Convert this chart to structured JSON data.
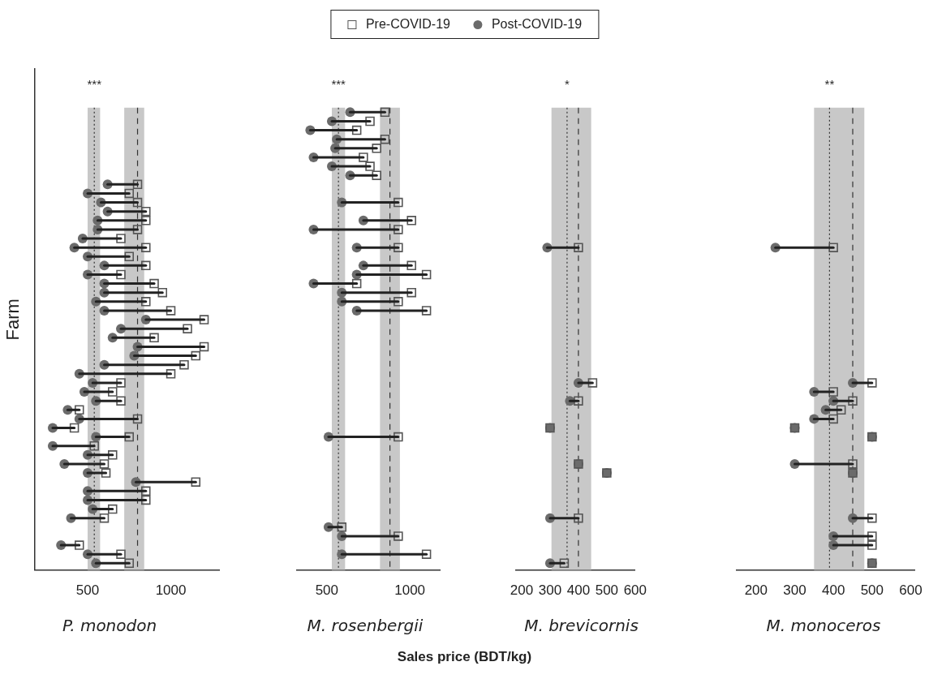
{
  "chart_data": [
    {
      "type": "scatter",
      "orientation": "horizontal",
      "title": "P. monodon",
      "ylabel": "Farm",
      "legend": "top",
      "annotations": [
        "***"
      ],
      "categories": [
        null,
        null,
        null,
        null,
        null,
        null,
        null,
        null,
        null,
        null,
        null,
        null,
        null,
        null,
        null,
        null,
        null,
        null,
        null,
        null,
        null,
        null,
        null,
        null,
        null,
        null,
        null,
        null,
        null,
        null,
        null,
        null,
        null,
        null,
        null,
        null,
        null,
        null,
        null,
        null,
        null,
        null,
        null,
        null,
        null,
        null,
        null,
        null,
        null,
        null,
        null
      ],
      "xlim": [
        180,
        1290
      ],
      "xticks": [
        500,
        1000
      ],
      "bands": [
        {
          "axis": "x",
          "from": 500,
          "to": 575,
          "color": "#c8c8c8"
        },
        {
          "axis": "x",
          "from": 720,
          "to": 840,
          "color": "#c8c8c8"
        }
      ],
      "ref_lines": [
        {
          "axis": "x",
          "value": 540,
          "line_style": "dotted",
          "color": "#333333"
        },
        {
          "axis": "x",
          "value": 800,
          "line_style": "dashed",
          "color": "#333333"
        }
      ],
      "series": [
        {
          "name": "Pre-COVID-19",
          "color": "#555555",
          "marker": "square",
          "values": [
            null,
            null,
            null,
            null,
            null,
            null,
            null,
            null,
            800,
            750,
            800,
            850,
            850,
            800,
            700,
            850,
            750,
            850,
            700,
            900,
            950,
            850,
            1000,
            1200,
            1100,
            900,
            1200,
            1150,
            1080,
            1000,
            700,
            650,
            700,
            450,
            800,
            420,
            750,
            540,
            650,
            600,
            610,
            1150,
            850,
            850,
            650,
            600,
            null,
            null,
            450,
            700,
            750
          ]
        },
        {
          "name": "Post-COVID-19",
          "color": "#6b6b6b",
          "marker": "circle",
          "values": [
            null,
            null,
            null,
            null,
            null,
            null,
            null,
            null,
            620,
            500,
            580,
            620,
            560,
            560,
            470,
            420,
            500,
            600,
            500,
            600,
            600,
            550,
            600,
            850,
            700,
            650,
            800,
            780,
            600,
            450,
            530,
            480,
            550,
            380,
            450,
            290,
            550,
            290,
            500,
            360,
            500,
            790,
            500,
            500,
            530,
            400,
            null,
            null,
            340,
            500,
            550
          ]
        }
      ]
    },
    {
      "type": "scatter",
      "orientation": "horizontal",
      "title": "M. rosenbergii",
      "annotations": [
        "***"
      ],
      "categories": [
        null,
        null,
        null,
        null,
        null,
        null,
        null,
        null,
        null,
        null,
        null,
        null,
        null,
        null,
        null,
        null,
        null,
        null,
        null,
        null,
        null,
        null,
        null,
        null,
        null,
        null,
        null,
        null,
        null,
        null,
        null,
        null,
        null,
        null,
        null,
        null,
        null,
        null,
        null,
        null,
        null,
        null,
        null,
        null,
        null,
        null,
        null,
        null,
        null,
        null,
        null
      ],
      "xlim": [
        320,
        1180
      ],
      "xticks": [
        500,
        1000
      ],
      "bands": [
        {
          "axis": "x",
          "from": 530,
          "to": 610,
          "color": "#c8c8c8"
        },
        {
          "axis": "x",
          "from": 820,
          "to": 940,
          "color": "#c8c8c8"
        }
      ],
      "ref_lines": [
        {
          "axis": "x",
          "value": 570,
          "line_style": "dotted",
          "color": "#333333"
        },
        {
          "axis": "x",
          "value": 880,
          "line_style": "dashed",
          "color": "#333333"
        }
      ],
      "series": [
        {
          "color": "#555555",
          "marker": "square",
          "values": [
            850,
            760,
            680,
            850,
            800,
            720,
            760,
            800,
            null,
            null,
            930,
            null,
            1010,
            930,
            null,
            930,
            null,
            1010,
            1100,
            680,
            1010,
            930,
            1100,
            null,
            null,
            null,
            null,
            null,
            null,
            null,
            null,
            null,
            null,
            null,
            null,
            null,
            930,
            null,
            null,
            null,
            null,
            null,
            null,
            null,
            null,
            null,
            590,
            930,
            null,
            1100,
            null
          ]
        },
        {
          "color": "#6b6b6b",
          "marker": "circle",
          "values": [
            640,
            530,
            400,
            560,
            550,
            420,
            530,
            640,
            null,
            null,
            590,
            null,
            720,
            420,
            null,
            680,
            null,
            720,
            680,
            420,
            590,
            590,
            680,
            null,
            null,
            null,
            null,
            null,
            null,
            null,
            null,
            null,
            null,
            null,
            null,
            null,
            510,
            null,
            null,
            null,
            null,
            null,
            null,
            null,
            null,
            null,
            510,
            590,
            null,
            590,
            null
          ]
        }
      ]
    },
    {
      "type": "scatter",
      "orientation": "horizontal",
      "title": "M. brevicornis",
      "annotations": [
        "*"
      ],
      "categories": [
        null,
        null,
        null,
        null,
        null,
        null,
        null,
        null,
        null,
        null,
        null,
        null,
        null,
        null,
        null,
        null,
        null,
        null,
        null,
        null,
        null,
        null,
        null,
        null,
        null,
        null,
        null,
        null,
        null,
        null,
        null,
        null,
        null,
        null,
        null,
        null,
        null,
        null,
        null,
        null,
        null,
        null,
        null,
        null,
        null,
        null,
        null,
        null,
        null,
        null,
        null
      ],
      "xlim": [
        180,
        600
      ],
      "xticks": [
        200,
        300,
        400,
        500,
        600
      ],
      "bands": [
        {
          "axis": "x",
          "from": 305,
          "to": 445,
          "color": "#c8c8c8"
        }
      ],
      "ref_lines": [
        {
          "axis": "x",
          "value": 360,
          "line_style": "dotted",
          "color": "#333333"
        },
        {
          "axis": "x",
          "value": 400,
          "line_style": "dashed",
          "color": "#333333"
        }
      ],
      "series": [
        {
          "color": "#555555",
          "marker": "square",
          "values": [
            null,
            null,
            null,
            null,
            null,
            null,
            null,
            null,
            null,
            null,
            null,
            null,
            null,
            null,
            null,
            400,
            null,
            null,
            null,
            null,
            null,
            null,
            null,
            null,
            null,
            null,
            null,
            null,
            null,
            null,
            450,
            null,
            400,
            null,
            null,
            300,
            null,
            null,
            null,
            400,
            500,
            null,
            null,
            null,
            null,
            400,
            null,
            null,
            null,
            null,
            350
          ]
        },
        {
          "color": "#6b6b6b",
          "marker": "circle",
          "values": [
            null,
            null,
            null,
            null,
            null,
            null,
            null,
            null,
            null,
            null,
            null,
            null,
            null,
            null,
            null,
            290,
            null,
            null,
            null,
            null,
            null,
            null,
            null,
            null,
            null,
            null,
            null,
            null,
            null,
            null,
            400,
            null,
            370,
            null,
            null,
            300,
            null,
            null,
            null,
            400,
            500,
            null,
            null,
            null,
            null,
            300,
            null,
            null,
            null,
            null,
            300
          ]
        }
      ]
    },
    {
      "type": "scatter",
      "orientation": "horizontal",
      "title": "M. monoceros",
      "annotations": [
        "**"
      ],
      "categories": [
        null,
        null,
        null,
        null,
        null,
        null,
        null,
        null,
        null,
        null,
        null,
        null,
        null,
        null,
        null,
        null,
        null,
        null,
        null,
        null,
        null,
        null,
        null,
        null,
        null,
        null,
        null,
        null,
        null,
        null,
        null,
        null,
        null,
        null,
        null,
        null,
        null,
        null,
        null,
        null,
        null,
        null,
        null,
        null,
        null,
        null,
        null,
        null,
        null,
        null,
        null
      ],
      "xlim": [
        150,
        610
      ],
      "xticks": [
        200,
        300,
        400,
        500,
        600
      ],
      "bands": [
        {
          "axis": "x",
          "from": 350,
          "to": 480,
          "color": "#c8c8c8"
        }
      ],
      "ref_lines": [
        {
          "axis": "x",
          "value": 390,
          "line_style": "dotted",
          "color": "#333333"
        },
        {
          "axis": "x",
          "value": 450,
          "line_style": "dashed",
          "color": "#333333"
        }
      ],
      "series": [
        {
          "color": "#555555",
          "marker": "square",
          "values": [
            null,
            null,
            null,
            null,
            null,
            null,
            null,
            null,
            null,
            null,
            null,
            null,
            null,
            null,
            null,
            400,
            null,
            null,
            null,
            null,
            null,
            null,
            null,
            null,
            null,
            null,
            null,
            null,
            null,
            null,
            500,
            400,
            450,
            420,
            400,
            300,
            500,
            null,
            null,
            450,
            450,
            null,
            null,
            null,
            null,
            500,
            null,
            500,
            500,
            null,
            500
          ]
        },
        {
          "color": "#6b6b6b",
          "marker": "circle",
          "values": [
            null,
            null,
            null,
            null,
            null,
            null,
            null,
            null,
            null,
            null,
            null,
            null,
            null,
            null,
            null,
            250,
            null,
            null,
            null,
            null,
            null,
            null,
            null,
            null,
            null,
            null,
            null,
            null,
            null,
            null,
            450,
            350,
            400,
            380,
            350,
            300,
            500,
            null,
            null,
            300,
            450,
            null,
            null,
            null,
            null,
            450,
            null,
            400,
            400,
            null,
            500
          ]
        }
      ]
    },
    {
      "type": "other",
      "xlabel": "Sales price (BDT/kg)"
    }
  ]
}
